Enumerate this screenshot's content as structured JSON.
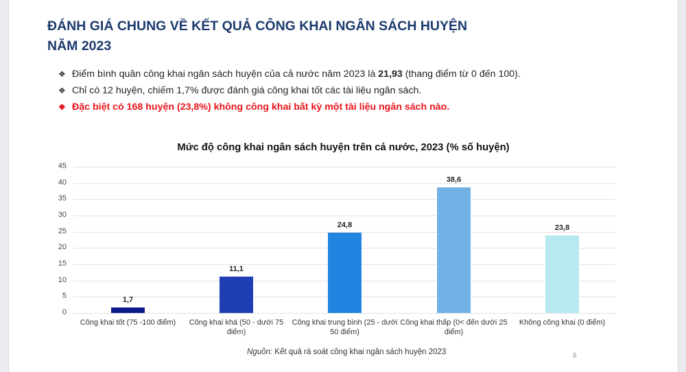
{
  "slide": {
    "title_line1": "ĐÁNH GIÁ CHUNG VỀ KẾT QUẢ CÔNG KHAI NGÂN SÁCH HUYỆN",
    "title_line2": "NĂM 2023",
    "bullets": [
      {
        "prefix": "Điểm bình quân công khai ngân sách huyện của cả nước năm 2023 là ",
        "bold": "21,93",
        "suffix": " (thang điểm từ 0 đến 100)."
      },
      {
        "text": "Chỉ có 12 huyện, chiếm 1,7% được đánh giá công khai tốt các tài liệu ngân sách."
      },
      {
        "text": "Đặc biệt có 168 huyện (23,8%) không công khai bất kỳ một tài liệu ngân sách nào."
      }
    ],
    "bullet_glyph": "❖",
    "source_label": "Nguồn:",
    "source_text": " Kết quả rà soát công khai ngân sách huyện 2023",
    "page_number": "8",
    "colors": {
      "title": "#1c3a6e",
      "highlight": "#e8141b"
    }
  },
  "chart_data": {
    "type": "bar",
    "title": "Mức độ công khai ngân sách huyện trên cả nước, 2023 (% số huyện)",
    "xlabel": "",
    "ylabel": "",
    "ylim": [
      0,
      45
    ],
    "yticks": [
      "0",
      "5",
      "10",
      "15",
      "20",
      "25",
      "30",
      "35",
      "40",
      "45"
    ],
    "grid": true,
    "legend": "none",
    "categories": [
      "Công khai tốt (75 -100 điểm)",
      "Công khai khá (50 - dưới 75 điểm)",
      "Công khai trung bình (25 - dưới 50 điểm)",
      "Công khai thấp (0< đến dưới 25 điểm)",
      "Không công khai (0 điểm)"
    ],
    "values": [
      1.7,
      11.1,
      24.8,
      38.6,
      23.8
    ],
    "value_labels": [
      "1,7",
      "11,1",
      "24,8",
      "38,6",
      "23,8"
    ],
    "colors": [
      "#0d1a8e",
      "#1f3db4",
      "#2283e0",
      "#72b2e7",
      "#b6eaef"
    ]
  }
}
